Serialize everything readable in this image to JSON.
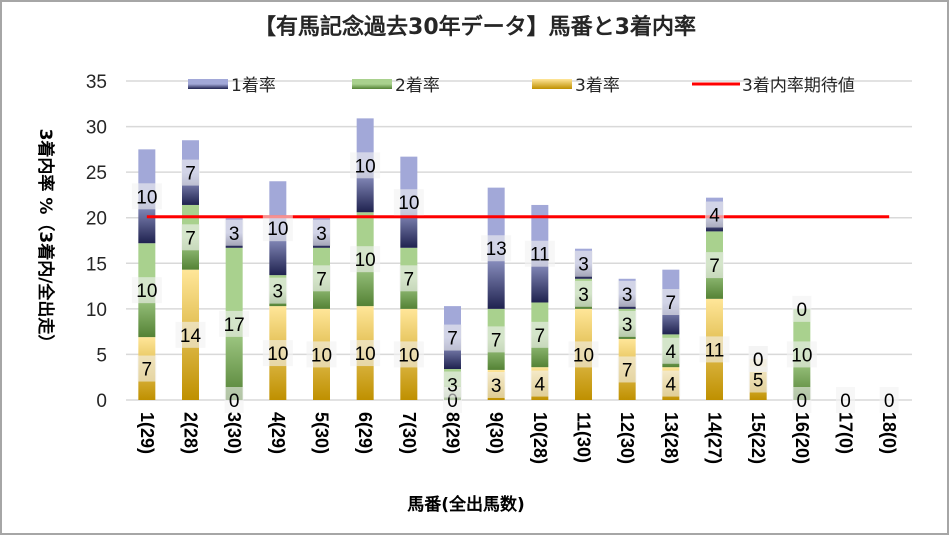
{
  "chart_data": {
    "type": "bar",
    "stacked": true,
    "title": "【有馬記念過去30年データ】馬番と3着内率",
    "xlabel": "馬番(全出馬数)",
    "ylabel": "3着内率 %（3着内/全出走）",
    "ylim": [
      0,
      35
    ],
    "yticks": [
      0,
      5,
      10,
      15,
      20,
      25,
      30,
      35
    ],
    "grid": true,
    "legend_position": "top",
    "categories": [
      "1(29)",
      "2(28)",
      "3(30)",
      "4(29)",
      "5(30)",
      "6(29)",
      "7(30)",
      "8(29)",
      "9(30)",
      "10(28)",
      "11(30)",
      "12(30)",
      "13(28)",
      "14(27)",
      "15(22)",
      "16(20)",
      "17(0)",
      "18(0)"
    ],
    "series": [
      {
        "name": "3着率",
        "colors": [
          "#ffe699",
          "#bf9000"
        ],
        "values": [
          6.9,
          14.3,
          0,
          10.3,
          10.0,
          10.3,
          10.0,
          0,
          3.3,
          3.6,
          10.0,
          6.7,
          3.6,
          11.1,
          4.5,
          0,
          0,
          0
        ],
        "labels": [
          "7",
          "14",
          "0",
          "10",
          "10",
          "10",
          "10",
          "0",
          "3",
          "4",
          "10",
          "7",
          "4",
          "11",
          "5",
          "0",
          "0",
          "0"
        ]
      },
      {
        "name": "2着率",
        "colors": [
          "#a9d18e",
          "#548235"
        ],
        "values": [
          10.3,
          7.1,
          16.7,
          3.4,
          6.7,
          10.3,
          6.7,
          3.4,
          6.7,
          7.1,
          3.3,
          3.3,
          3.6,
          7.4,
          0,
          10.0,
          0,
          0
        ],
        "labels": [
          "10",
          "7",
          "17",
          "3",
          "7",
          "10",
          "7",
          "3",
          "7",
          "7",
          "3",
          "3",
          "4",
          "7",
          "0",
          "10",
          "",
          ""
        ]
      },
      {
        "name": "1着率",
        "colors": [
          "#a2a8d8",
          "#1f224f"
        ],
        "values": [
          10.3,
          7.1,
          3.3,
          10.3,
          3.3,
          10.3,
          10.0,
          6.9,
          13.3,
          10.7,
          3.3,
          3.3,
          7.1,
          3.7,
          0,
          0,
          0,
          0
        ],
        "labels": [
          "10",
          "7",
          "3",
          "10",
          "3",
          "10",
          "10",
          "7",
          "13",
          "11",
          "3",
          "3",
          "7",
          "4",
          "0",
          "0",
          "",
          ""
        ]
      }
    ],
    "line": {
      "name": "3着内率期待値",
      "color": "#ff0000",
      "value": 20.1
    }
  },
  "legend": [
    {
      "label": "1着率",
      "swatch": "series-1"
    },
    {
      "label": "2着率",
      "swatch": "series-2"
    },
    {
      "label": "3着率",
      "swatch": "series-3"
    },
    {
      "label": "3着内率期待値",
      "swatch": "line"
    }
  ]
}
